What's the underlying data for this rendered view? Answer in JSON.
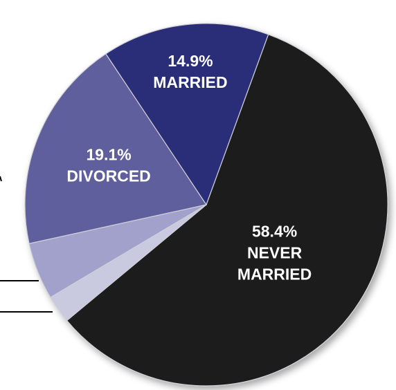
{
  "chart_data": {
    "type": "pie",
    "title": "",
    "slices": [
      {
        "value": 58.4,
        "percent_label": "58.4%",
        "label_lines": [
          "NEVER",
          "MARRIED"
        ],
        "color": "#1d1d1d"
      },
      {
        "value": 2.5,
        "percent_label": "",
        "label_lines": [],
        "color": "#c9c9e0"
      },
      {
        "value": 5.1,
        "percent_label": "",
        "label_lines": [],
        "color": "#a1a1cc"
      },
      {
        "value": 19.1,
        "percent_label": "19.1%",
        "label_lines": [
          "DIVORCED"
        ],
        "color": "#5f5f9e"
      },
      {
        "value": 14.9,
        "percent_label": "14.9%",
        "label_lines": [
          "MARRIED"
        ],
        "color": "#2b2f78"
      }
    ],
    "start_angle_deg": 20,
    "direction": "clockwise"
  }
}
